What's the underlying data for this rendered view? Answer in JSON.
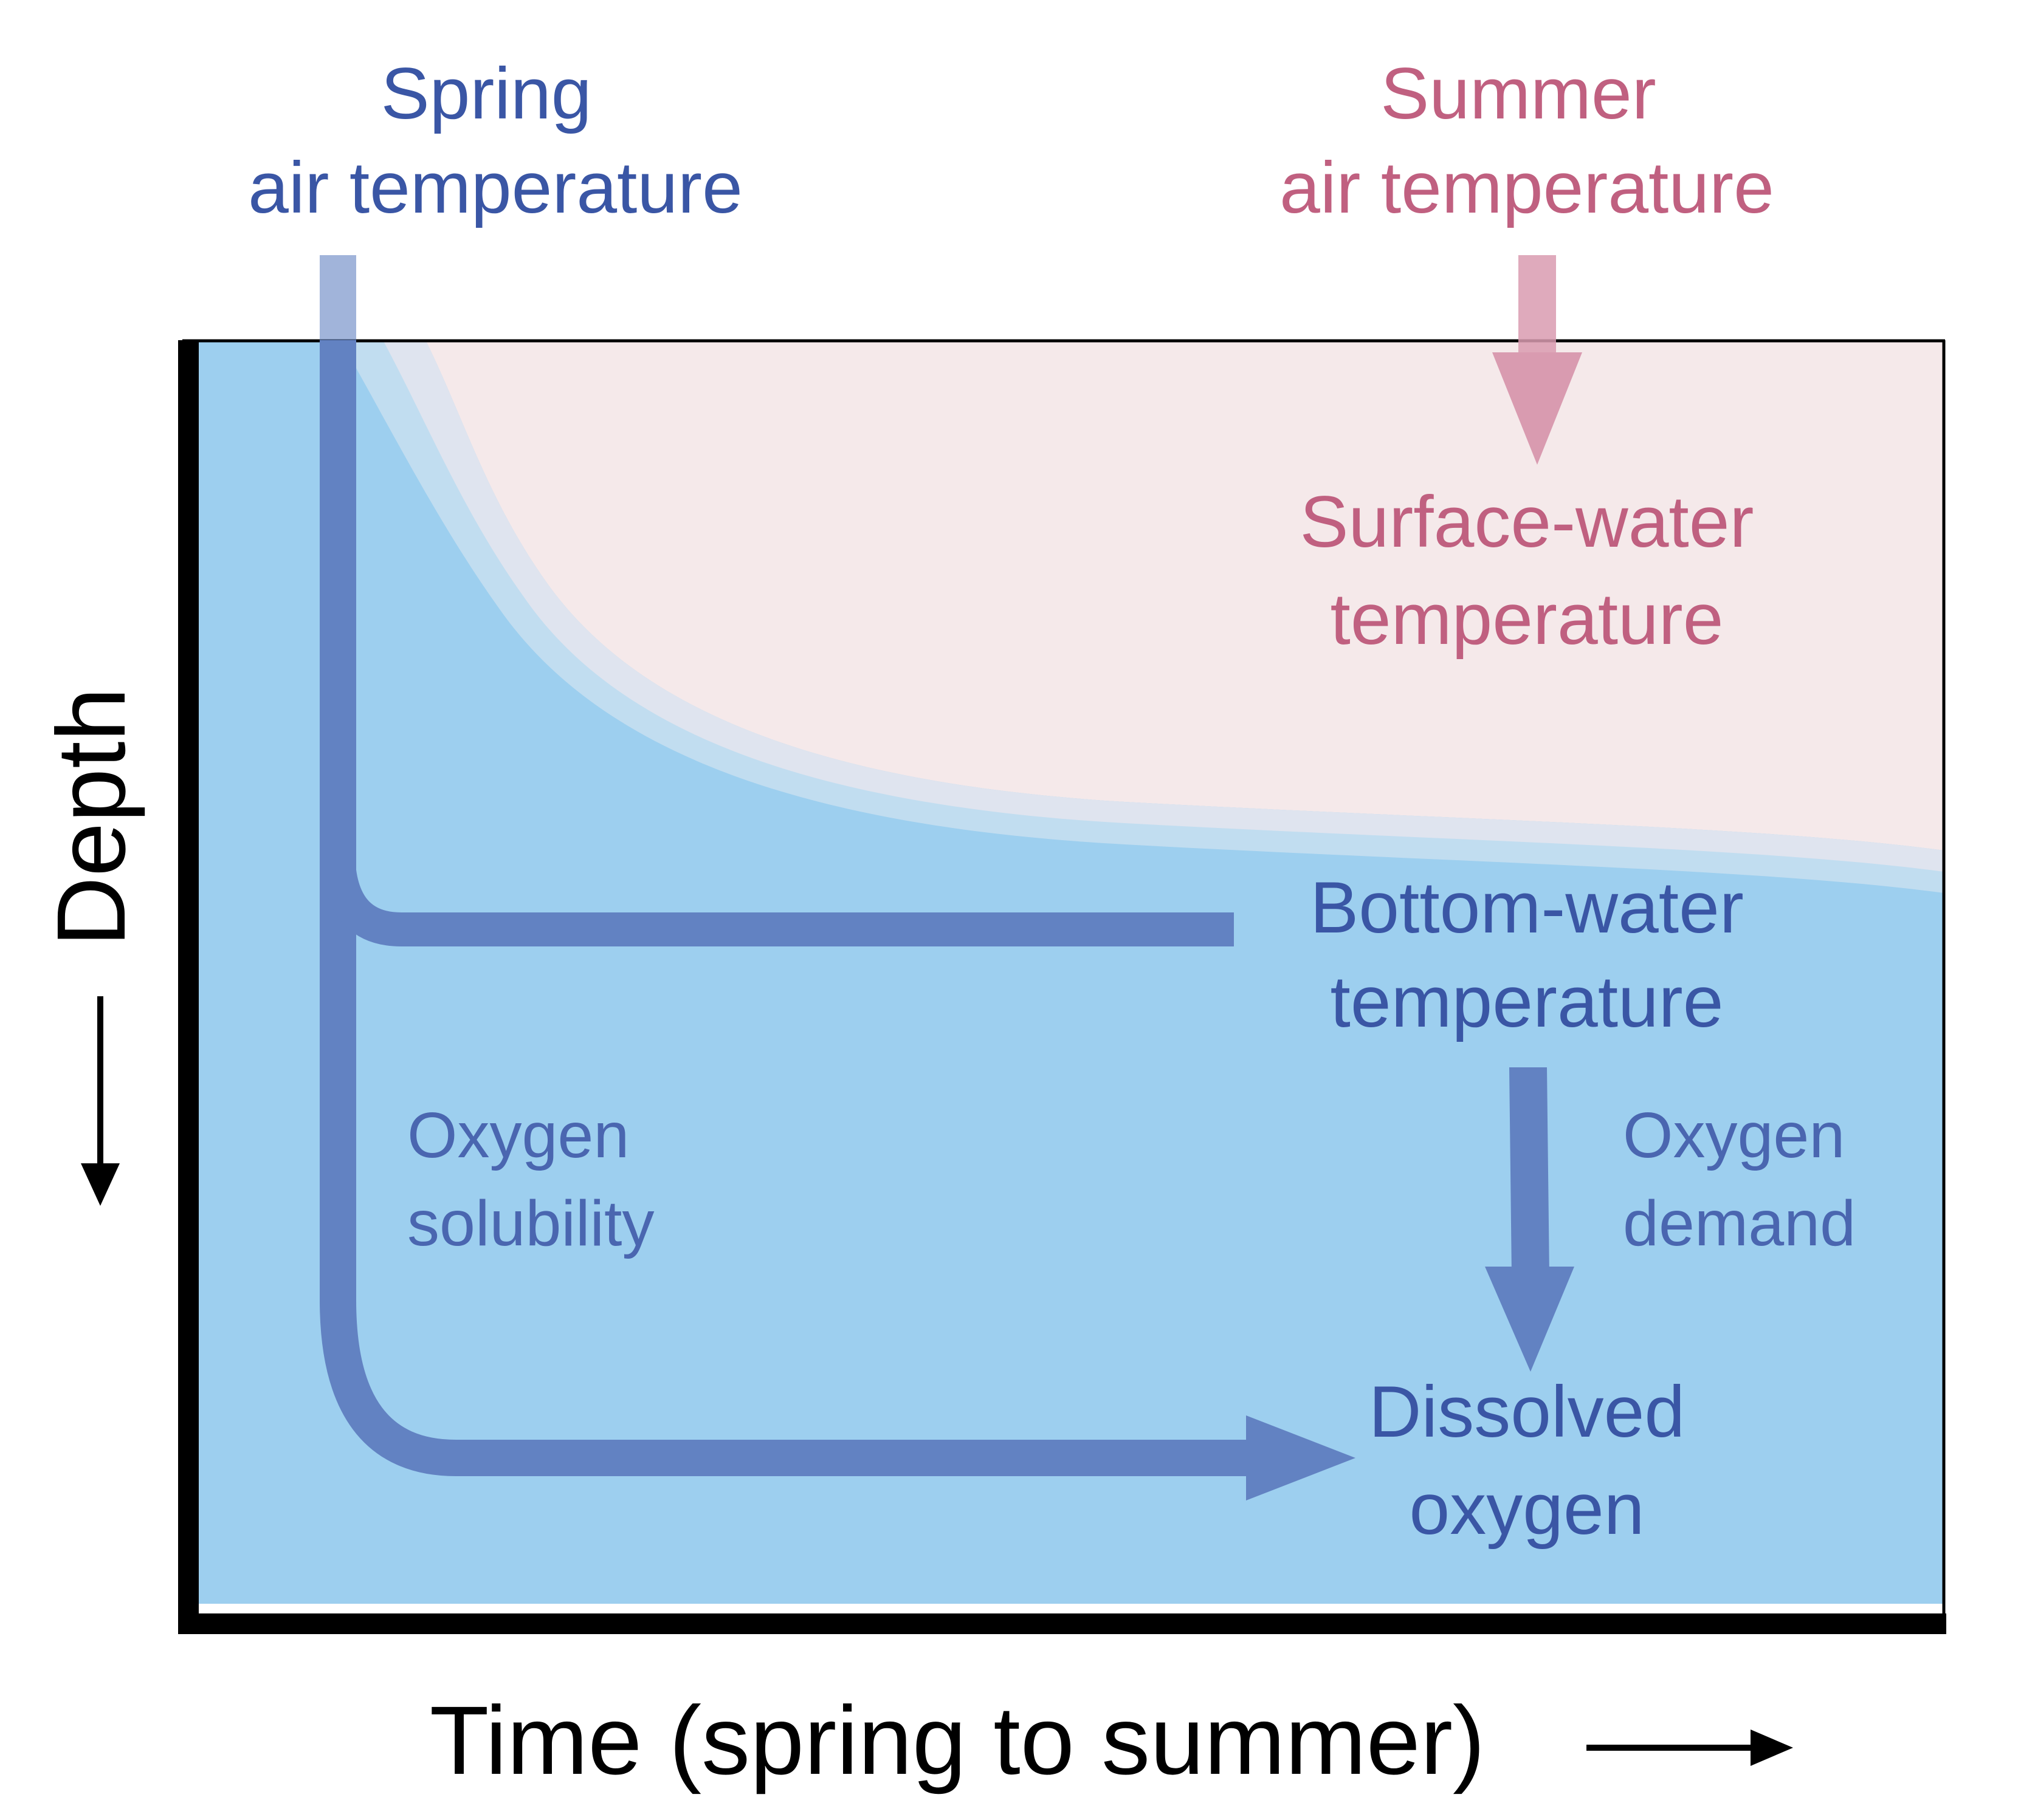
{
  "labels": {
    "spring_line1": "Spring",
    "spring_line2": "air temperature",
    "summer_line1": "Summer",
    "summer_line2": "air temperature",
    "surface_line1": "Surface-water",
    "surface_line2": "temperature",
    "bottom_line1": "Bottom-water",
    "bottom_line2": "temperature",
    "solubility_line1": "Oxygen",
    "solubility_line2": "solubility",
    "demand_line1": "Oxygen",
    "demand_line2": "demand",
    "dissolved_line1": "Dissolved",
    "dissolved_line2": "oxygen"
  },
  "axes": {
    "x_label": "Time (spring to summer)",
    "y_label": "Depth"
  },
  "colors": {
    "spring_blue": "#3a56a5",
    "summer_pink": "#c06080",
    "arrow_blue": "#6282c2",
    "arrow_pink": "#d99bb0",
    "water_blue": "#9dcfef",
    "warm_surface": "#f5e8ea",
    "axis_black": "#000000"
  }
}
